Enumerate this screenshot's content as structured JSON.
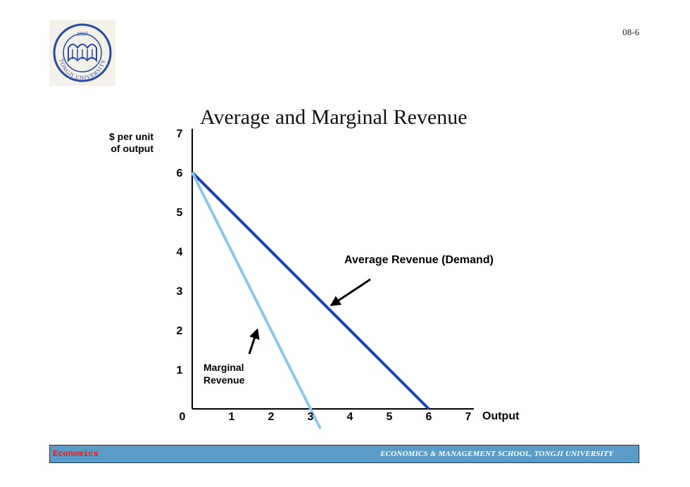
{
  "header": {
    "page_number": "08-6",
    "logo_name": "tongji-university-seal",
    "logo_text": "TONGJI UNIVERSITY",
    "logo_year": "1907"
  },
  "footer": {
    "left_label": "Economics",
    "right_label": "ECONOMICS & MANAGEMENT SCHOOL, TONGJI UNIVERSITY",
    "bg_color": "#5b9bc7",
    "left_color": "#e02020"
  },
  "chart_data": {
    "type": "line",
    "title": "Average and Marginal Revenue",
    "ylabel": "$ per unit of output",
    "xlabel": "Output",
    "xlim": [
      0,
      7
    ],
    "ylim": [
      0,
      7
    ],
    "xticks": [
      "0",
      "1",
      "2",
      "3",
      "4",
      "5",
      "6",
      "7"
    ],
    "yticks": [
      "1",
      "2",
      "3",
      "4",
      "5",
      "6",
      "7"
    ],
    "grid": false,
    "series": [
      {
        "name": "Average Revenue (Demand)",
        "x": [
          0,
          6
        ],
        "y": [
          6,
          0
        ],
        "color": "#1f3fb0"
      },
      {
        "name": "Marginal Revenue",
        "x": [
          0,
          3.25
        ],
        "y": [
          6,
          -0.5
        ],
        "color": "#8ec8ec"
      }
    ],
    "annotations": [
      {
        "text": "Average Revenue (Demand)",
        "arrow_to": [
          3.5,
          2.6
        ]
      },
      {
        "text_lines": [
          "Marginal",
          "Revenue"
        ],
        "arrow_to": [
          1.7,
          2.05
        ]
      }
    ]
  }
}
